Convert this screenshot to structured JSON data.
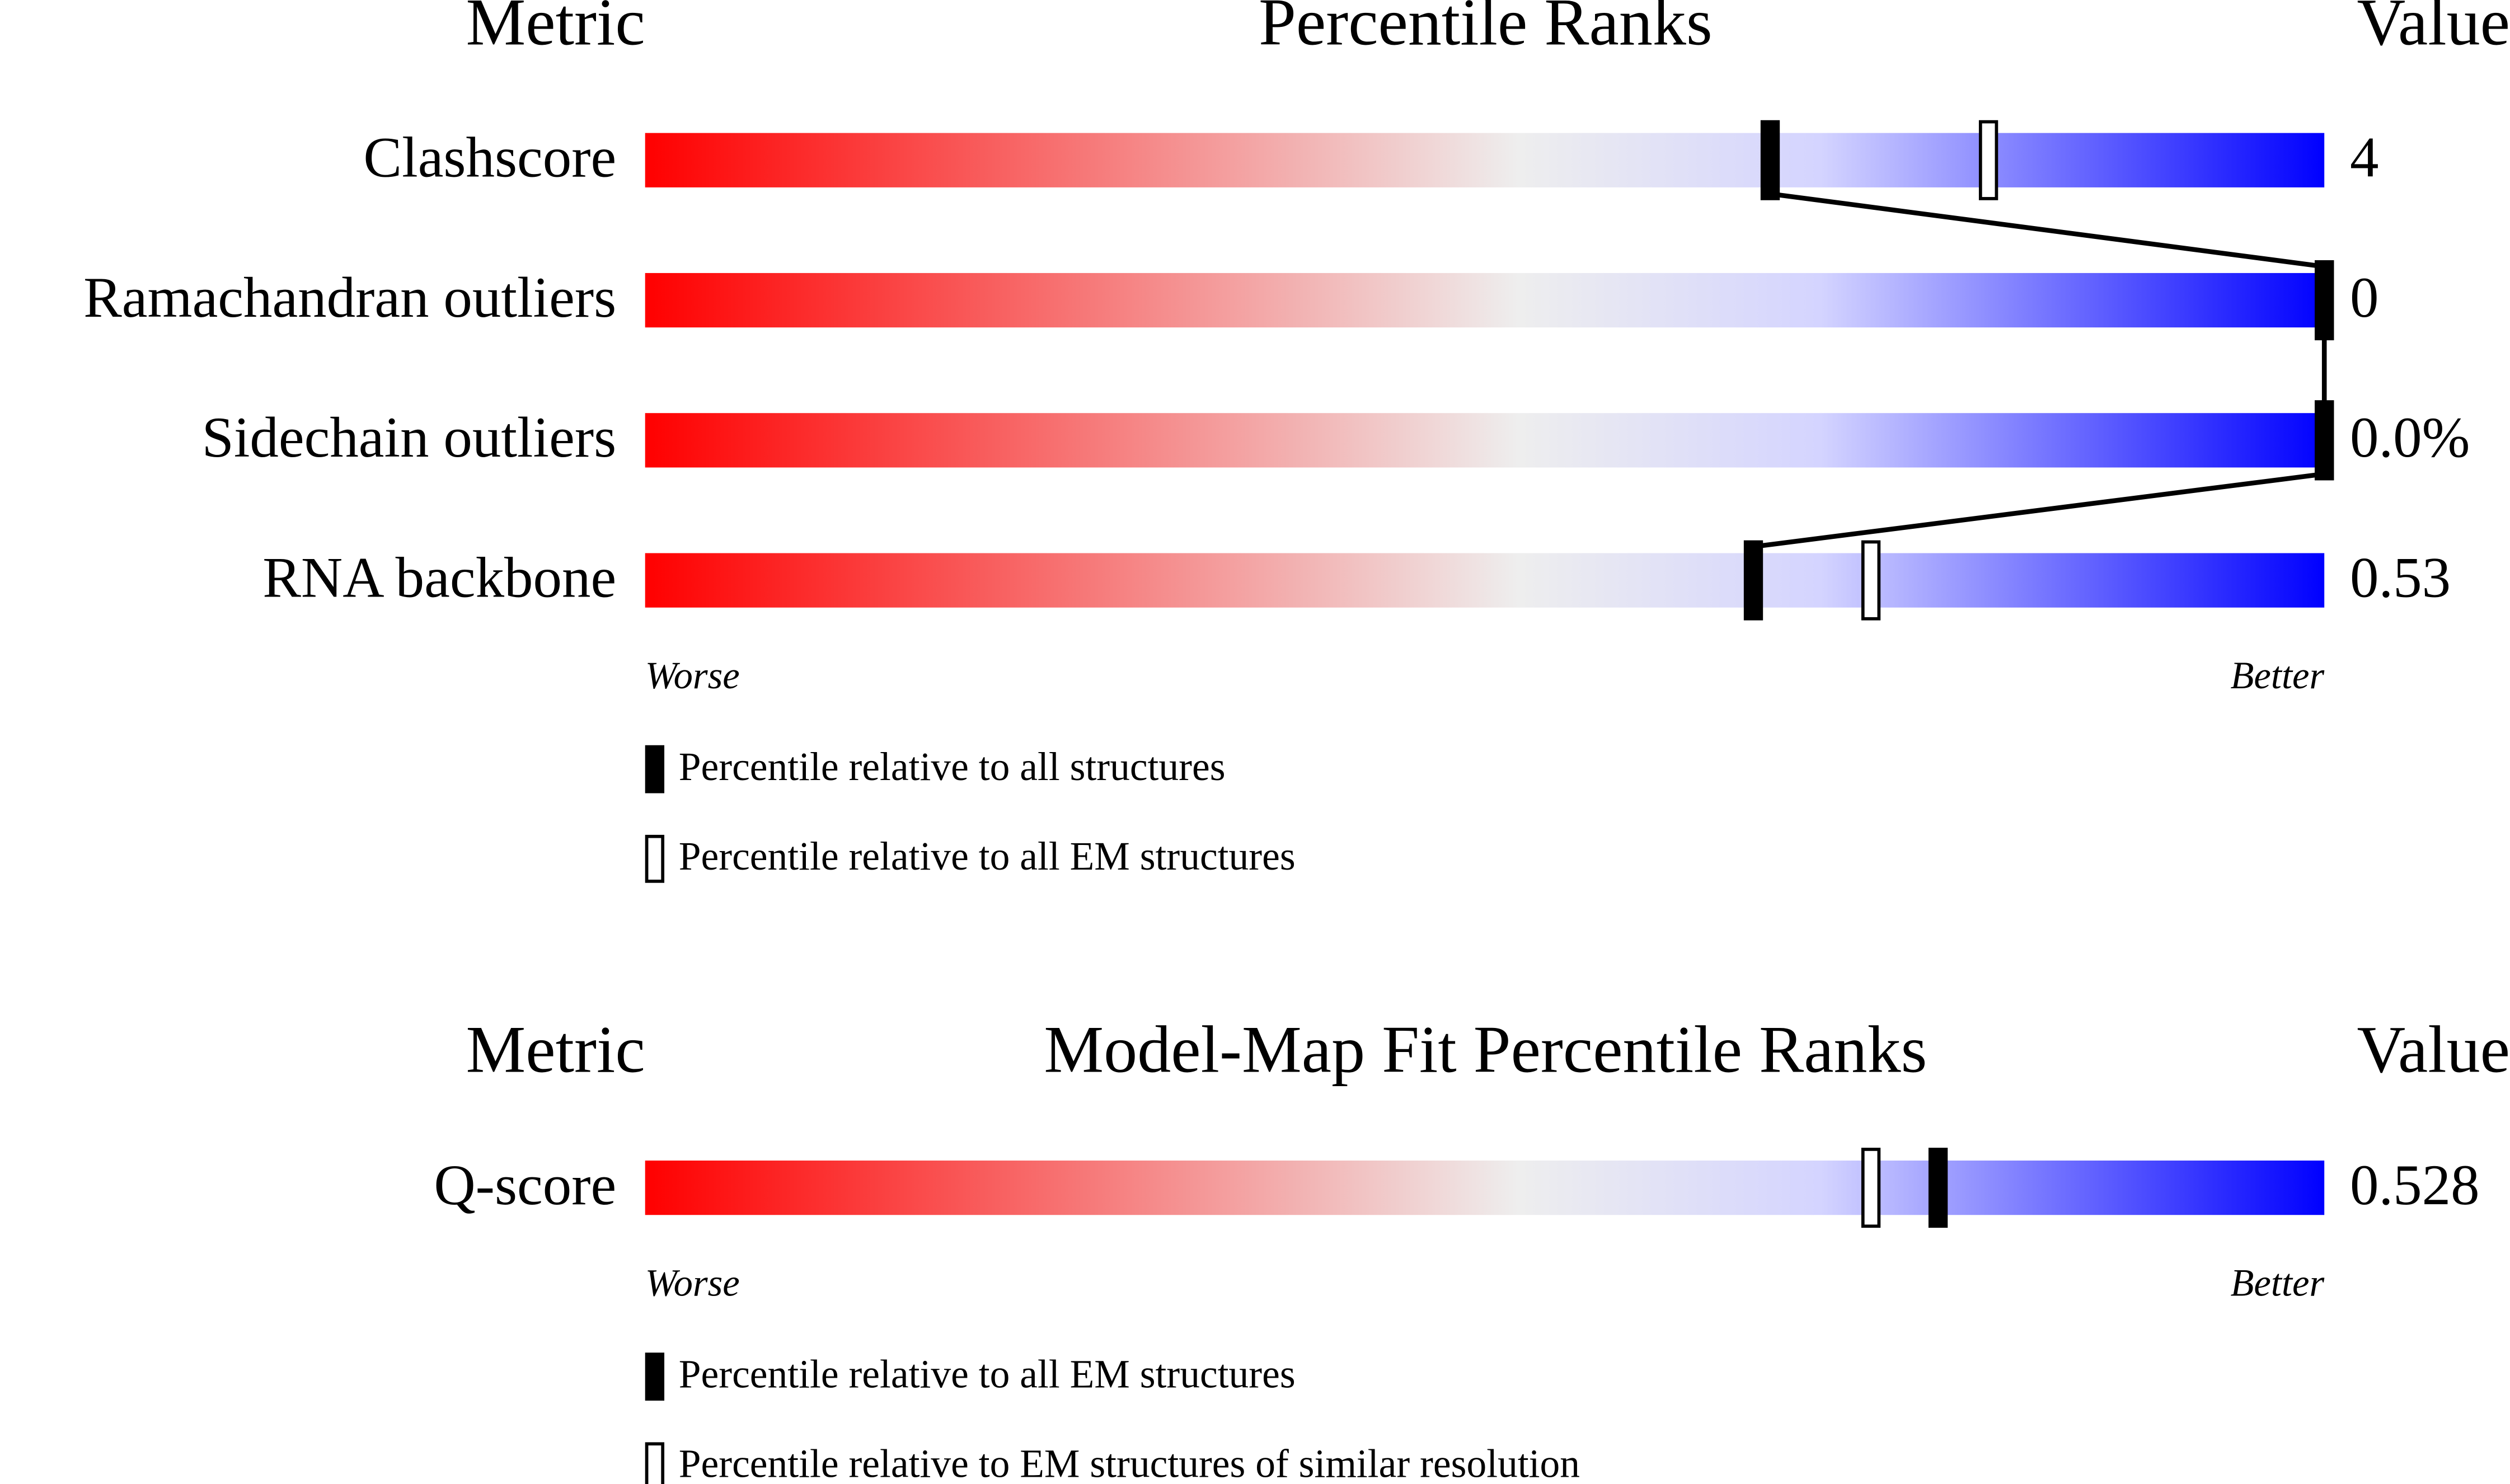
{
  "chart_data": [
    {
      "type": "slider",
      "metric_header": "Metric",
      "title": "Percentile Ranks",
      "value_header": "Value",
      "categories": [
        "Clashscore",
        "Ramachandran outliers",
        "Sidechain outliers",
        "RNA backbone"
      ],
      "metric_values": [
        "4",
        "0",
        "0.0%",
        "0.53"
      ],
      "xlim": [
        0,
        100
      ],
      "worse_label": "Worse",
      "better_label": "Better",
      "gradient": [
        "#ff0000",
        "#eeeeee",
        "#d4d4ff",
        "#0000ff"
      ],
      "connect_first_series": true,
      "series": [
        {
          "name": "Percentile relative to all structures",
          "color": "#000000",
          "style": "filled",
          "values": [
            67,
            100,
            100,
            66
          ]
        },
        {
          "name": "Percentile relative to all EM structures",
          "color": "#000000",
          "style": "open",
          "values": [
            80,
            100,
            100,
            73
          ]
        }
      ]
    },
    {
      "type": "slider",
      "metric_header": "Metric",
      "title": "Model-Map Fit Percentile Ranks",
      "value_header": "Value",
      "categories": [
        "Q-score"
      ],
      "metric_values": [
        "0.528"
      ],
      "xlim": [
        0,
        100
      ],
      "worse_label": "Worse",
      "better_label": "Better",
      "gradient": [
        "#ff0000",
        "#eeeeee",
        "#d4d4ff",
        "#0000ff"
      ],
      "connect_first_series": true,
      "series": [
        {
          "name": "Percentile relative to all EM structures",
          "color": "#000000",
          "style": "filled",
          "values": [
            77
          ]
        },
        {
          "name": "Percentile relative to EM structures of similar resolution",
          "color": "#000000",
          "style": "open",
          "values": [
            73
          ]
        }
      ]
    }
  ]
}
